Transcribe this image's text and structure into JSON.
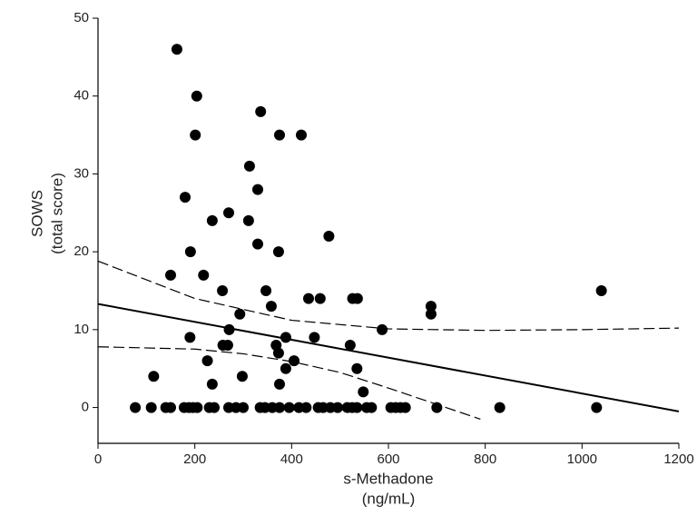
{
  "chart_data": {
    "type": "scatter",
    "xlabel": [
      "s-Methadone",
      "(ng/mL)"
    ],
    "ylabel": [
      "SOWS",
      "(total score)"
    ],
    "color": "#000000",
    "x": [
      163,
      204,
      201,
      375,
      420,
      336,
      313,
      330,
      180,
      270,
      236,
      311,
      477,
      330,
      191,
      373,
      150,
      218,
      257,
      347,
      1040,
      435,
      459,
      526,
      536,
      358,
      688,
      293,
      688,
      271,
      587,
      190,
      388,
      447,
      258,
      268,
      368,
      521,
      373,
      226,
      405,
      388,
      535,
      115,
      298,
      236,
      375,
      548,
      77,
      110,
      140,
      150,
      178,
      188,
      196,
      205,
      230,
      240,
      270,
      285,
      300,
      335,
      345,
      360,
      375,
      395,
      415,
      430,
      455,
      465,
      480,
      495,
      515,
      525,
      535,
      555,
      565,
      605,
      615,
      625,
      635,
      700,
      830,
      1030
    ],
    "values": [
      46,
      40,
      35,
      35,
      35,
      38,
      31,
      28,
      27,
      25,
      24,
      24,
      22,
      21,
      20,
      20,
      17,
      17,
      15,
      15,
      15,
      14,
      14,
      14,
      14,
      13,
      13,
      12,
      12,
      10,
      10,
      9,
      9,
      9,
      8,
      8,
      8,
      8,
      7,
      6,
      6,
      5,
      5,
      4,
      4,
      3,
      3,
      2,
      0,
      0,
      0,
      0,
      0,
      0,
      0,
      0,
      0,
      0,
      0,
      0,
      0,
      0,
      0,
      0,
      0,
      0,
      0,
      0,
      0,
      0,
      0,
      0,
      0,
      0,
      0,
      0,
      0,
      0,
      0,
      0,
      0,
      0,
      0,
      0
    ],
    "fit_line": {
      "x": [
        0,
        1200
      ],
      "values": [
        13.3,
        -0.5
      ]
    },
    "confidence_bands": [
      {
        "x": [
          0,
          200,
          400,
          600,
          800,
          1000,
          1200
        ],
        "values": [
          18.8,
          14,
          11.2,
          10.1,
          9.9,
          10,
          10.2
        ]
      },
      {
        "x": [
          0,
          200,
          300,
          400,
          500,
          600,
          700,
          790
        ],
        "values": [
          7.8,
          7.5,
          6.9,
          5.9,
          4.5,
          2.5,
          0.4,
          -1.5
        ]
      }
    ],
    "xlim": [
      0,
      1200
    ],
    "xticks": [
      0,
      200,
      400,
      600,
      800,
      1000,
      1200
    ],
    "ylim": [
      -4.6,
      50
    ],
    "yticks": [
      0,
      10,
      20,
      30,
      40,
      50
    ]
  }
}
